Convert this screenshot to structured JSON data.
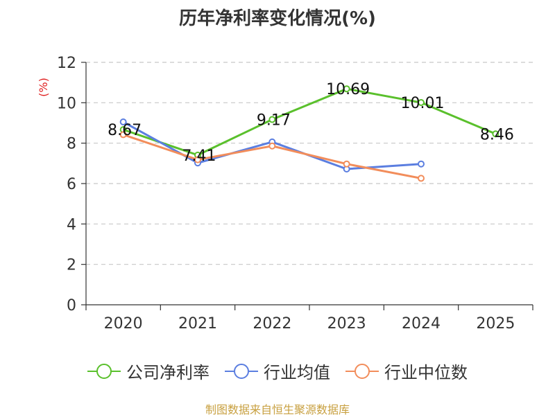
{
  "chart_data": {
    "type": "line",
    "title": "历年净利率变化情况(%)",
    "ylabel": "(%)",
    "xlabel": "",
    "categories": [
      "2020",
      "2021",
      "2022",
      "2023",
      "2024",
      "2025"
    ],
    "ylim": [
      0,
      12
    ],
    "yticks": [
      0,
      2,
      4,
      6,
      8,
      10,
      12
    ],
    "grid": true,
    "legend_position": "bottom",
    "series": [
      {
        "name": "公司净利率",
        "color": "#5ac02c",
        "values": [
          8.67,
          7.41,
          9.17,
          10.69,
          10.01,
          8.46
        ],
        "labels": [
          "8.67",
          "7.41",
          "9.17",
          "10.69",
          "10.01",
          "8.46"
        ]
      },
      {
        "name": "行业均值",
        "color": "#5b7ee0",
        "values": [
          9.05,
          7.02,
          8.06,
          6.72,
          6.97,
          null
        ]
      },
      {
        "name": "行业中位数",
        "color": "#f28d5b",
        "values": [
          8.42,
          7.18,
          7.86,
          6.97,
          6.26,
          null
        ]
      }
    ]
  },
  "source_note": "制图数据来自恒生聚源数据库"
}
